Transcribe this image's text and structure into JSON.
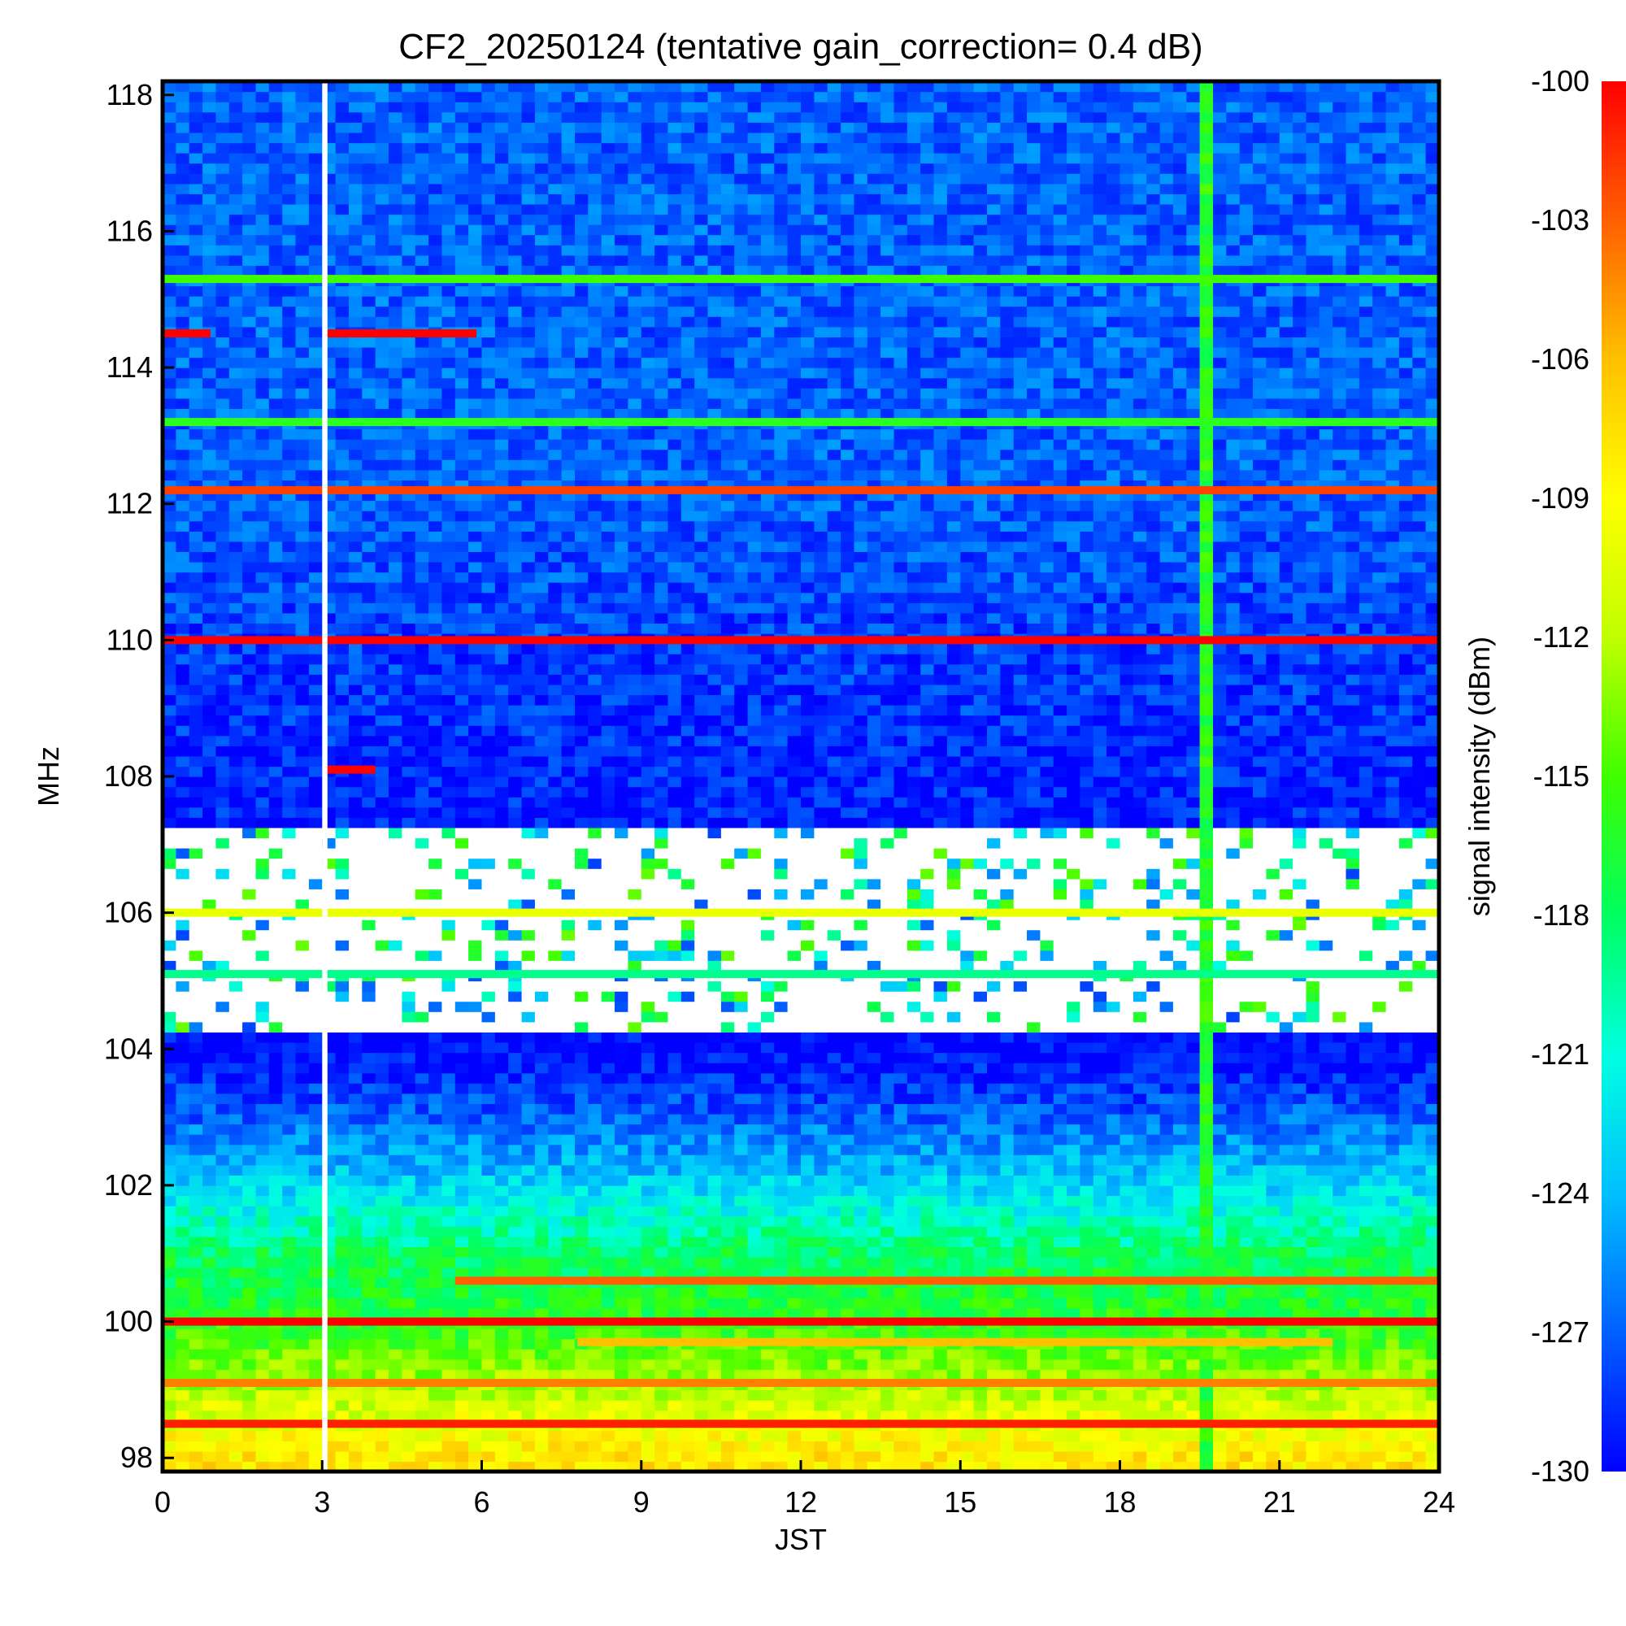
{
  "chart_data": {
    "type": "heatmap",
    "title": "CF2_20250124 (tentative gain_correction=  0.4 dB)",
    "xlabel": "JST",
    "ylabel": "MHz",
    "xlim": [
      0,
      24
    ],
    "ylim": [
      97.8,
      118.2
    ],
    "x_ticks": [
      "0",
      "3",
      "6",
      "9",
      "12",
      "15",
      "18",
      "21",
      "24"
    ],
    "y_ticks": [
      "98",
      "100",
      "102",
      "104",
      "106",
      "108",
      "110",
      "112",
      "114",
      "116",
      "118"
    ],
    "colorbar": {
      "label": "signal intensity (dBm)",
      "range": [
        -130,
        -100
      ],
      "ticks": [
        "-100",
        "-103",
        "-106",
        "-109",
        "-112",
        "-115",
        "-118",
        "-121",
        "-124",
        "-127",
        "-130"
      ],
      "colormap": [
        "#0000ff",
        "#0060ff",
        "#00c0ff",
        "#00ffe0",
        "#00ff60",
        "#40ff00",
        "#c0ff00",
        "#ffff00",
        "#ffc000",
        "#ff6000",
        "#ff0000"
      ]
    },
    "gaps": [
      {
        "kind": "no-data",
        "x": [
          3.0,
          3.1
        ],
        "y": [
          97.8,
          118.2
        ]
      },
      {
        "kind": "blank-band",
        "y": [
          104.2,
          107.3
        ]
      }
    ],
    "vertical_event": {
      "x": 19.7,
      "level_dBm": -116
    },
    "strong_lines": [
      {
        "freq_mhz": 110.0,
        "level_dBm": -100,
        "x": [
          0,
          24
        ]
      },
      {
        "freq_mhz": 100.0,
        "level_dBm": -100,
        "x": [
          0,
          24
        ]
      },
      {
        "freq_mhz": 112.2,
        "level_dBm": -102,
        "x": [
          0,
          24
        ]
      },
      {
        "freq_mhz": 98.5,
        "level_dBm": -101,
        "x": [
          0,
          24
        ]
      },
      {
        "freq_mhz": 114.5,
        "level_dBm": -100,
        "x": [
          0,
          0.9
        ]
      },
      {
        "freq_mhz": 114.5,
        "level_dBm": -100,
        "x": [
          3.1,
          5.9
        ]
      },
      {
        "freq_mhz": 108.1,
        "level_dBm": -100,
        "x": [
          3.0,
          4.0
        ]
      },
      {
        "freq_mhz": 115.3,
        "level_dBm": -115,
        "x": [
          0,
          24
        ]
      },
      {
        "freq_mhz": 113.2,
        "level_dBm": -116,
        "x": [
          0,
          24
        ]
      },
      {
        "freq_mhz": 105.1,
        "level_dBm": -119,
        "x": [
          0,
          24
        ]
      },
      {
        "freq_mhz": 106.0,
        "level_dBm": -110,
        "x": [
          0,
          24
        ]
      },
      {
        "freq_mhz": 100.6,
        "level_dBm": -103,
        "x": [
          5.5,
          24
        ]
      },
      {
        "freq_mhz": 99.7,
        "level_dBm": -106,
        "x": [
          7.8,
          22
        ]
      },
      {
        "freq_mhz": 99.1,
        "level_dBm": -104,
        "x": [
          0,
          24
        ]
      }
    ],
    "background_by_freq": [
      {
        "freq_mhz": 98,
        "level_dBm": -108
      },
      {
        "freq_mhz": 99,
        "level_dBm": -112
      },
      {
        "freq_mhz": 100,
        "level_dBm": -116
      },
      {
        "freq_mhz": 101,
        "level_dBm": -118
      },
      {
        "freq_mhz": 102,
        "level_dBm": -123
      },
      {
        "freq_mhz": 103,
        "level_dBm": -127
      },
      {
        "freq_mhz": 104,
        "level_dBm": -130
      },
      {
        "freq_mhz": 108,
        "level_dBm": -129
      },
      {
        "freq_mhz": 112,
        "level_dBm": -127
      },
      {
        "freq_mhz": 118,
        "level_dBm": -127
      }
    ]
  }
}
